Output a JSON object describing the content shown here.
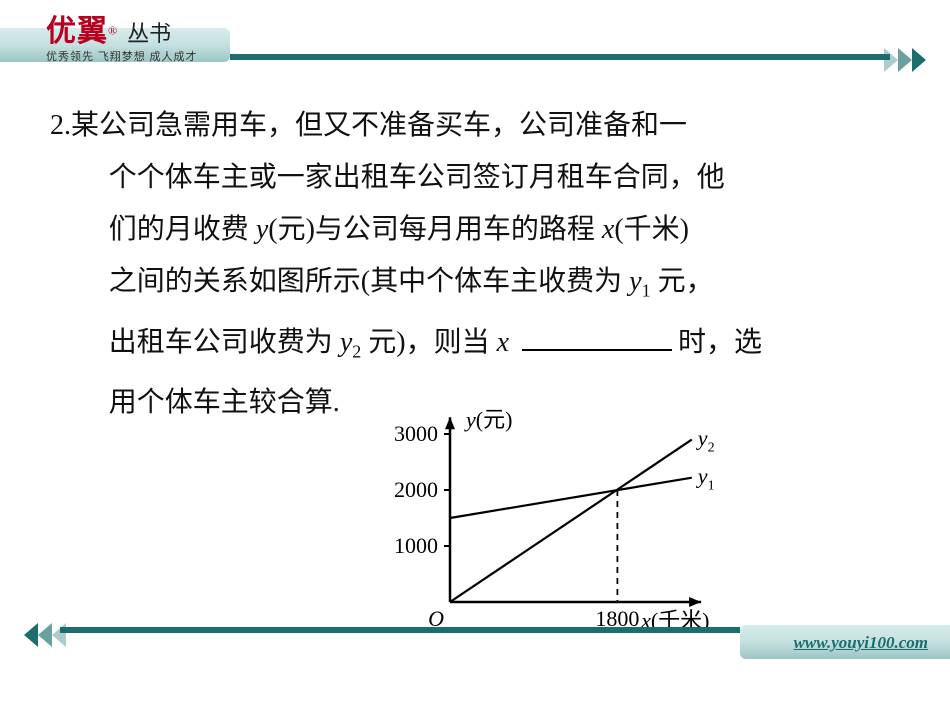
{
  "brand": {
    "name": "优翼",
    "registered": "®",
    "sub": "丛书",
    "motto": "优秀领先 飞翔梦想 成人成才"
  },
  "footer": {
    "url": "www.youyi100.com"
  },
  "problem": {
    "number": "2.",
    "line1": "某公司急需用车，但又不准备买车，公司准备和一",
    "line2": "个个体车主或一家出租车公司签订月租车合同，他",
    "line3a": "们的月收费 ",
    "line3b": "(元)与公司每月用车的路程 ",
    "line3c": "(千米)",
    "line4a": "之间的关系如图所示(其中个体车主收费为 ",
    "line4b": " 元，",
    "line5a": "出租车公司收费为 ",
    "line5b": " 元)，则当 ",
    "line5c": "时，选",
    "line6": "用个体车主较合算.",
    "var_y": "y",
    "var_x": "x",
    "var_y1_y": "y",
    "var_y1_1": "1",
    "var_y2_y": "y",
    "var_y2_2": "2"
  },
  "chart": {
    "type": "line",
    "xlabel_var": "x",
    "xlabel_unit": "(千米)",
    "ylabel_var": "y",
    "ylabel_unit": "(元)",
    "origin_label": "O",
    "y_ticks": [
      1000,
      2000,
      3000
    ],
    "x_tick": 1800,
    "intersection_y": 2000,
    "series": [
      {
        "name": "y2",
        "label_var": "y",
        "label_sub": "2",
        "points": [
          [
            0,
            0
          ],
          [
            2600,
            2900
          ]
        ],
        "stroke": "#000000",
        "width": 2.2
      },
      {
        "name": "y1",
        "label_var": "y",
        "label_sub": "1",
        "points": [
          [
            0,
            1500
          ],
          [
            2600,
            2220
          ]
        ],
        "stroke": "#000000",
        "width": 2.2
      }
    ],
    "axis_color": "#000000",
    "dash_color": "#000000",
    "plot": {
      "ox": 100,
      "oy": 200,
      "sx": 0.093,
      "sy": 0.056,
      "ylim": [
        0,
        3300
      ],
      "xlim": [
        0,
        2700
      ]
    },
    "font": {
      "tick": 22,
      "label": 22
    }
  }
}
